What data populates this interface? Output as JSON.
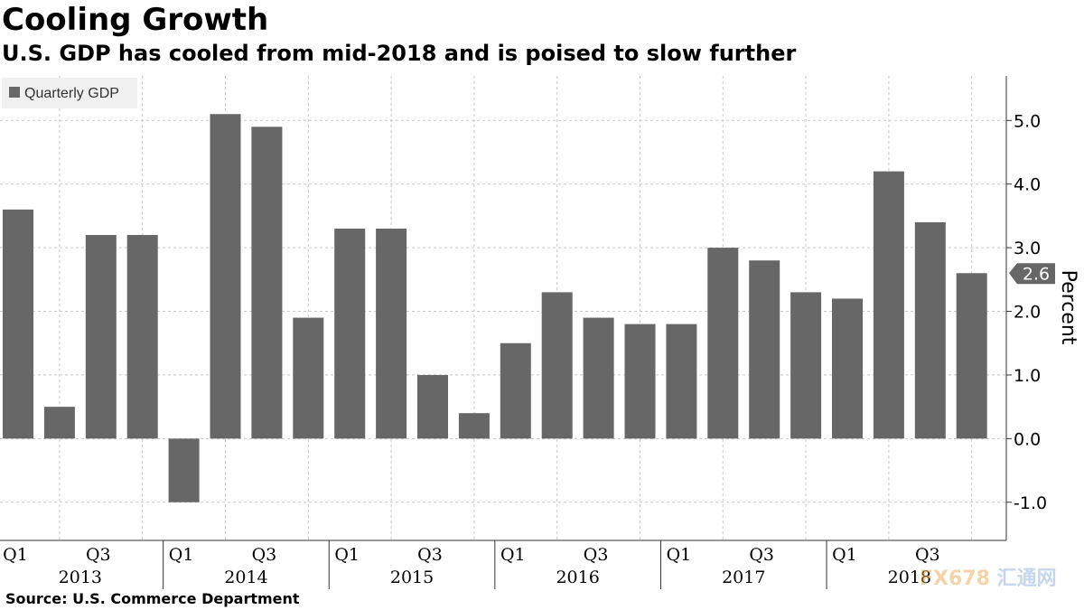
{
  "colors": {
    "bar": "#676767",
    "grid": "#c8c8c8",
    "axis": "#333333",
    "legend_bg": "#f0f0f0",
    "callout_bg": "#676767",
    "callout_text": "#ffffff"
  },
  "legend": {
    "label": "Quarterly GDP"
  },
  "source": "Source: U.S. Commerce Department",
  "watermark": {
    "brand": "FX678",
    "cn": "汇通网"
  },
  "chart_data": {
    "type": "bar",
    "title": "Cooling Growth",
    "subtitle": "U.S. GDP has cooled from mid-2018 and is poised to slow further",
    "ylabel": "Percent",
    "xlabel": "",
    "ylim": [
      -1.6,
      5.7
    ],
    "yticks": [
      5.0,
      4.0,
      3.0,
      2.0,
      1.0,
      0.0,
      -1.0
    ],
    "ytick_labels": [
      "5.0",
      "4.0",
      "3.0",
      "2.0",
      "1.0",
      "0.0",
      "-1.0"
    ],
    "categories": [
      "2013 Q1",
      "2013 Q2",
      "2013 Q3",
      "2013 Q4",
      "2014 Q1",
      "2014 Q2",
      "2014 Q3",
      "2014 Q4",
      "2015 Q1",
      "2015 Q2",
      "2015 Q3",
      "2015 Q4",
      "2016 Q1",
      "2016 Q2",
      "2016 Q3",
      "2016 Q4",
      "2017 Q1",
      "2017 Q2",
      "2017 Q3",
      "2017 Q4",
      "2018 Q1",
      "2018 Q2",
      "2018 Q3",
      "2018 Q4"
    ],
    "values": [
      3.6,
      0.5,
      3.2,
      3.2,
      -1.0,
      5.1,
      4.9,
      1.9,
      3.3,
      3.3,
      1.0,
      0.4,
      1.5,
      2.3,
      1.9,
      1.8,
      1.8,
      3.0,
      2.8,
      2.3,
      2.2,
      4.2,
      3.4,
      2.6
    ],
    "quarter_ticks": [
      {
        "index": 0,
        "label": "Q1"
      },
      {
        "index": 2,
        "label": "Q3"
      },
      {
        "index": 4,
        "label": "Q1"
      },
      {
        "index": 6,
        "label": "Q3"
      },
      {
        "index": 8,
        "label": "Q1"
      },
      {
        "index": 10,
        "label": "Q3"
      },
      {
        "index": 12,
        "label": "Q1"
      },
      {
        "index": 14,
        "label": "Q3"
      },
      {
        "index": 16,
        "label": "Q1"
      },
      {
        "index": 18,
        "label": "Q3"
      },
      {
        "index": 20,
        "label": "Q1"
      },
      {
        "index": 22,
        "label": "Q3"
      }
    ],
    "years": [
      "2013",
      "2014",
      "2015",
      "2016",
      "2017",
      "2018"
    ],
    "last_value_label": "2.6",
    "last_value": 2.6,
    "legend_position": "top-left",
    "grid": true
  }
}
